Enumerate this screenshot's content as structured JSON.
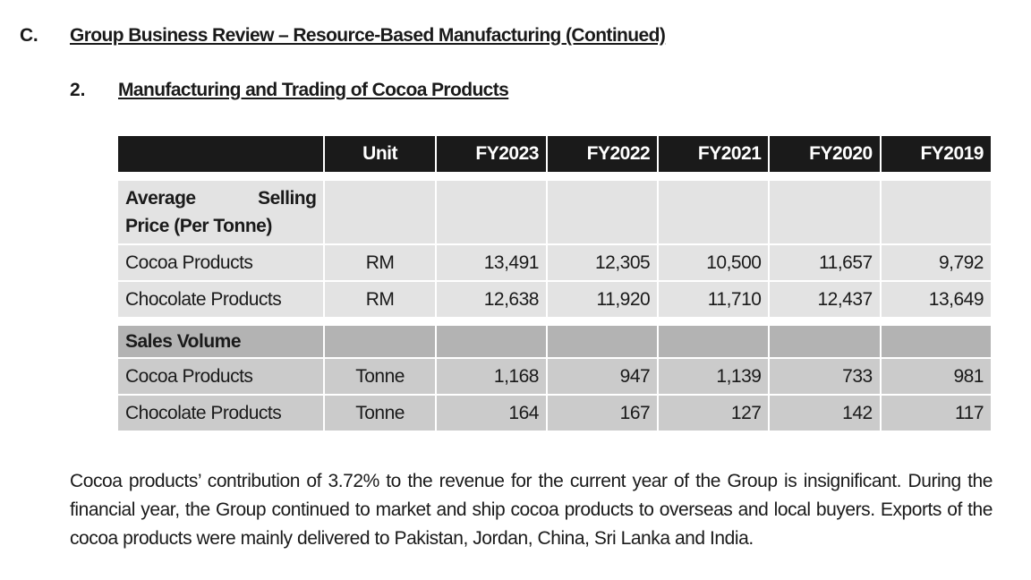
{
  "section": {
    "letter": "C.",
    "title": "Group Business Review – Resource-Based Manufacturing (Continued)"
  },
  "subsection": {
    "number": "2.",
    "title": "Manufacturing and Trading of Cocoa Products"
  },
  "table": {
    "headers": [
      "",
      "Unit",
      "FY2023",
      "FY2022",
      "FY2021",
      "FY2020",
      "FY2019"
    ],
    "groups": [
      {
        "title_part1": "Average",
        "title_part2": "Selling",
        "title_line2": "Price (Per Tonne)",
        "rows": [
          {
            "label": "Cocoa Products",
            "unit": "RM",
            "values": [
              "13,491",
              "12,305",
              "10,500",
              "11,657",
              "9,792"
            ]
          },
          {
            "label": "Chocolate Products",
            "unit": "RM",
            "values": [
              "12,638",
              "11,920",
              "11,710",
              "12,437",
              "13,649"
            ]
          }
        ]
      },
      {
        "title": "Sales Volume",
        "rows": [
          {
            "label": "Cocoa Products",
            "unit": "Tonne",
            "values": [
              "1,168",
              "947",
              "1,139",
              "733",
              "981"
            ]
          },
          {
            "label": "Chocolate Products",
            "unit": "Tonne",
            "values": [
              "164",
              "167",
              "127",
              "142",
              "117"
            ]
          }
        ]
      }
    ]
  },
  "paragraph": "Cocoa products’ contribution of 3.72% to the revenue for the current year of the Group is insignificant. During the financial year, the Group continued to market and ship cocoa products to overseas and local buyers. Exports of the cocoa products were mainly delivered to Pakistan, Jordan, China, Sri Lanka and India.",
  "colors": {
    "header_bg": "#1a1a1a",
    "group1_bg": "#e3e3e3",
    "group2_bg": "#cbcbcb",
    "group2_header_bg": "#b3b3b3"
  }
}
